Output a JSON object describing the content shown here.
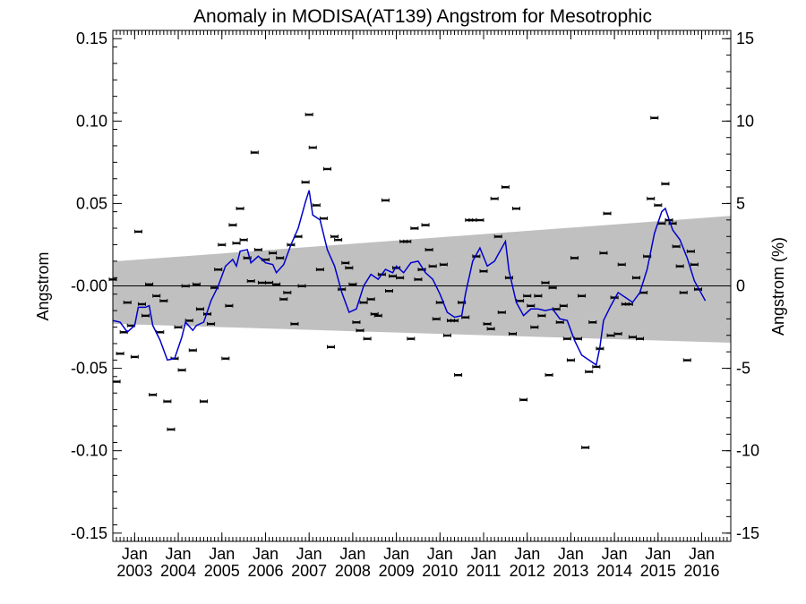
{
  "chart_data": {
    "type": "scatter",
    "title": "Anomaly in MODISA(AT139) Angstrom for Mesotrophic",
    "ylabel_left": "Angstrom",
    "ylabel_right": "Angstrom (%)",
    "ylim_left": [
      -0.155,
      0.155
    ],
    "ylim_right": [
      -15.5,
      15.5
    ],
    "y_ticks_left": [
      "0.15",
      "0.10",
      "0.05",
      "-0.00",
      "-0.05",
      "-0.10",
      "-0.15"
    ],
    "y_tick_values_left": [
      0.15,
      0.1,
      0.05,
      0.0,
      -0.05,
      -0.1,
      -0.15
    ],
    "y_ticks_right": [
      "15",
      "10",
      "5",
      "0",
      "-5",
      "-10",
      "-15"
    ],
    "y_tick_values_right": [
      15,
      10,
      5,
      0,
      -5,
      -10,
      -15
    ],
    "x_range": [
      "2002-07-01",
      "2016-09-01"
    ],
    "x_ticks": [
      {
        "date": "2003-01",
        "line1": "Jan",
        "line2": "2003"
      },
      {
        "date": "2004-01",
        "line1": "Jan",
        "line2": "2004"
      },
      {
        "date": "2005-01",
        "line1": "Jan",
        "line2": "2005"
      },
      {
        "date": "2006-01",
        "line1": "Jan",
        "line2": "2006"
      },
      {
        "date": "2007-01",
        "line1": "Jan",
        "line2": "2007"
      },
      {
        "date": "2008-01",
        "line1": "Jan",
        "line2": "2008"
      },
      {
        "date": "2009-01",
        "line1": "Jan",
        "line2": "2009"
      },
      {
        "date": "2010-01",
        "line1": "Jan",
        "line2": "2010"
      },
      {
        "date": "2011-01",
        "line1": "Jan",
        "line2": "2011"
      },
      {
        "date": "2012-01",
        "line1": "Jan",
        "line2": "2012"
      },
      {
        "date": "2013-01",
        "line1": "Jan",
        "line2": "2013"
      },
      {
        "date": "2014-01",
        "line1": "Jan",
        "line2": "2014"
      },
      {
        "date": "2015-01",
        "line1": "Jan",
        "line2": "2015"
      },
      {
        "date": "2016-01",
        "line1": "Jan",
        "line2": "2016"
      }
    ],
    "zero_line": 0.0,
    "band": {
      "start": {
        "date": "2002-07",
        "upper": 0.0148,
        "lower": -0.023
      },
      "end": {
        "date": "2016-09",
        "upper": 0.0425,
        "lower": -0.0345
      }
    },
    "monthly_points": [
      {
        "date": "2002-07",
        "value": 0.004
      },
      {
        "date": "2002-08",
        "value": -0.058
      },
      {
        "date": "2002-09",
        "value": -0.041
      },
      {
        "date": "2002-10",
        "value": -0.028
      },
      {
        "date": "2002-11",
        "value": -0.01
      },
      {
        "date": "2002-12",
        "value": -0.024
      },
      {
        "date": "2003-01",
        "value": -0.043
      },
      {
        "date": "2003-02",
        "value": 0.033
      },
      {
        "date": "2003-03",
        "value": -0.011
      },
      {
        "date": "2003-04",
        "value": -0.018
      },
      {
        "date": "2003-05",
        "value": 0.001
      },
      {
        "date": "2003-06",
        "value": -0.066
      },
      {
        "date": "2003-07",
        "value": -0.006
      },
      {
        "date": "2003-08",
        "value": -0.028
      },
      {
        "date": "2003-09",
        "value": -0.009
      },
      {
        "date": "2003-10",
        "value": -0.07
      },
      {
        "date": "2003-11",
        "value": -0.087
      },
      {
        "date": "2003-12",
        "value": -0.044
      },
      {
        "date": "2004-01",
        "value": -0.025
      },
      {
        "date": "2004-02",
        "value": -0.051
      },
      {
        "date": "2004-03",
        "value": 0.0
      },
      {
        "date": "2004-04",
        "value": -0.021
      },
      {
        "date": "2004-05",
        "value": -0.039
      },
      {
        "date": "2004-06",
        "value": 0.001
      },
      {
        "date": "2004-07",
        "value": -0.014
      },
      {
        "date": "2004-08",
        "value": -0.07
      },
      {
        "date": "2004-09",
        "value": -0.017
      },
      {
        "date": "2004-10",
        "value": -0.023
      },
      {
        "date": "2004-11",
        "value": -0.001
      },
      {
        "date": "2004-12",
        "value": 0.01
      },
      {
        "date": "2005-01",
        "value": 0.025
      },
      {
        "date": "2005-02",
        "value": -0.044
      },
      {
        "date": "2005-03",
        "value": -0.012
      },
      {
        "date": "2005-04",
        "value": 0.037
      },
      {
        "date": "2005-05",
        "value": 0.026
      },
      {
        "date": "2005-06",
        "value": 0.047
      },
      {
        "date": "2005-07",
        "value": 0.028
      },
      {
        "date": "2005-08",
        "value": 0.017
      },
      {
        "date": "2005-09",
        "value": 0.003
      },
      {
        "date": "2005-10",
        "value": 0.081
      },
      {
        "date": "2005-11",
        "value": 0.022
      },
      {
        "date": "2005-12",
        "value": 0.002
      },
      {
        "date": "2006-01",
        "value": 0.016
      },
      {
        "date": "2006-02",
        "value": 0.002
      },
      {
        "date": "2006-03",
        "value": 0.02
      },
      {
        "date": "2006-04",
        "value": 0.001
      },
      {
        "date": "2006-05",
        "value": 0.017
      },
      {
        "date": "2006-06",
        "value": -0.008
      },
      {
        "date": "2006-07",
        "value": -0.004
      },
      {
        "date": "2006-08",
        "value": 0.025
      },
      {
        "date": "2006-09",
        "value": -0.023
      },
      {
        "date": "2006-10",
        "value": 0.03
      },
      {
        "date": "2006-11",
        "value": 0.0
      },
      {
        "date": "2006-12",
        "value": 0.063
      },
      {
        "date": "2007-01",
        "value": 0.104
      },
      {
        "date": "2007-02",
        "value": 0.084
      },
      {
        "date": "2007-03",
        "value": 0.049
      },
      {
        "date": "2007-04",
        "value": 0.01
      },
      {
        "date": "2007-05",
        "value": 0.041
      },
      {
        "date": "2007-06",
        "value": 0.071
      },
      {
        "date": "2007-07",
        "value": -0.037
      },
      {
        "date": "2007-08",
        "value": 0.03
      },
      {
        "date": "2007-09",
        "value": 0.028
      },
      {
        "date": "2007-10",
        "value": -0.002
      },
      {
        "date": "2007-11",
        "value": 0.014
      },
      {
        "date": "2007-12",
        "value": 0.011
      },
      {
        "date": "2008-01",
        "value": 0.001
      },
      {
        "date": "2008-02",
        "value": -0.022
      },
      {
        "date": "2008-03",
        "value": -0.027
      },
      {
        "date": "2008-04",
        "value": -0.01
      },
      {
        "date": "2008-05",
        "value": -0.032
      },
      {
        "date": "2008-06",
        "value": -0.008
      },
      {
        "date": "2008-07",
        "value": -0.017
      },
      {
        "date": "2008-08",
        "value": -0.018
      },
      {
        "date": "2008-09",
        "value": 0.007
      },
      {
        "date": "2008-10",
        "value": 0.052
      },
      {
        "date": "2008-11",
        "value": -0.003
      },
      {
        "date": "2008-12",
        "value": 0.006
      },
      {
        "date": "2009-01",
        "value": 0.011
      },
      {
        "date": "2009-02",
        "value": 0.005
      },
      {
        "date": "2009-03",
        "value": 0.027
      },
      {
        "date": "2009-04",
        "value": 0.027
      },
      {
        "date": "2009-05",
        "value": -0.032
      },
      {
        "date": "2009-06",
        "value": 0.035
      },
      {
        "date": "2009-07",
        "value": 0.004
      },
      {
        "date": "2009-08",
        "value": 0.01
      },
      {
        "date": "2009-09",
        "value": 0.037
      },
      {
        "date": "2009-10",
        "value": 0.022
      },
      {
        "date": "2009-11",
        "value": 0.012
      },
      {
        "date": "2009-12",
        "value": -0.02
      },
      {
        "date": "2010-01",
        "value": -0.01
      },
      {
        "date": "2010-02",
        "value": 0.013
      },
      {
        "date": "2010-03",
        "value": -0.03
      },
      {
        "date": "2010-04",
        "value": -0.021
      },
      {
        "date": "2010-05",
        "value": -0.021
      },
      {
        "date": "2010-06",
        "value": -0.054
      },
      {
        "date": "2010-07",
        "value": -0.01
      },
      {
        "date": "2010-08",
        "value": -0.019
      },
      {
        "date": "2010-09",
        "value": 0.04
      },
      {
        "date": "2010-10",
        "value": 0.04
      },
      {
        "date": "2010-11",
        "value": 0.018
      },
      {
        "date": "2010-12",
        "value": 0.04
      },
      {
        "date": "2011-01",
        "value": 0.009
      },
      {
        "date": "2011-02",
        "value": -0.023
      },
      {
        "date": "2011-03",
        "value": -0.026
      },
      {
        "date": "2011-04",
        "value": 0.053
      },
      {
        "date": "2011-05",
        "value": 0.03
      },
      {
        "date": "2011-06",
        "value": -0.016
      },
      {
        "date": "2011-07",
        "value": 0.06
      },
      {
        "date": "2011-08",
        "value": 0.005
      },
      {
        "date": "2011-09",
        "value": -0.029
      },
      {
        "date": "2011-10",
        "value": 0.047
      },
      {
        "date": "2011-11",
        "value": -0.009
      },
      {
        "date": "2011-12",
        "value": -0.069
      },
      {
        "date": "2012-01",
        "value": -0.006
      },
      {
        "date": "2012-02",
        "value": -0.012
      },
      {
        "date": "2012-03",
        "value": -0.025
      },
      {
        "date": "2012-04",
        "value": -0.006
      },
      {
        "date": "2012-05",
        "value": -0.018
      },
      {
        "date": "2012-06",
        "value": 0.002
      },
      {
        "date": "2012-07",
        "value": -0.054
      },
      {
        "date": "2012-08",
        "value": -0.001
      },
      {
        "date": "2012-09",
        "value": -0.014
      },
      {
        "date": "2012-10",
        "value": -0.022
      },
      {
        "date": "2012-11",
        "value": -0.012
      },
      {
        "date": "2012-12",
        "value": -0.032
      },
      {
        "date": "2013-01",
        "value": -0.045
      },
      {
        "date": "2013-02",
        "value": 0.017
      },
      {
        "date": "2013-03",
        "value": -0.032
      },
      {
        "date": "2013-04",
        "value": -0.006
      },
      {
        "date": "2013-05",
        "value": -0.098
      },
      {
        "date": "2013-06",
        "value": -0.052
      },
      {
        "date": "2013-07",
        "value": -0.022
      },
      {
        "date": "2013-08",
        "value": -0.049
      },
      {
        "date": "2013-09",
        "value": -0.038
      },
      {
        "date": "2013-10",
        "value": 0.02
      },
      {
        "date": "2013-11",
        "value": 0.044
      },
      {
        "date": "2013-12",
        "value": -0.03
      },
      {
        "date": "2014-01",
        "value": -0.007
      },
      {
        "date": "2014-02",
        "value": -0.029
      },
      {
        "date": "2014-03",
        "value": 0.013
      },
      {
        "date": "2014-04",
        "value": -0.011
      },
      {
        "date": "2014-05",
        "value": -0.011
      },
      {
        "date": "2014-06",
        "value": -0.031
      },
      {
        "date": "2014-07",
        "value": 0.005
      },
      {
        "date": "2014-08",
        "value": -0.032
      },
      {
        "date": "2014-09",
        "value": -0.004
      },
      {
        "date": "2014-10",
        "value": 0.018
      },
      {
        "date": "2014-11",
        "value": 0.053
      },
      {
        "date": "2014-12",
        "value": 0.102
      },
      {
        "date": "2015-01",
        "value": 0.049
      },
      {
        "date": "2015-02",
        "value": 0.038
      },
      {
        "date": "2015-03",
        "value": 0.062
      },
      {
        "date": "2015-04",
        "value": 0.04
      },
      {
        "date": "2015-05",
        "value": 0.038
      },
      {
        "date": "2015-06",
        "value": 0.024
      },
      {
        "date": "2015-07",
        "value": 0.012
      },
      {
        "date": "2015-08",
        "value": -0.004
      },
      {
        "date": "2015-09",
        "value": -0.045
      },
      {
        "date": "2015-10",
        "value": 0.021
      },
      {
        "date": "2015-11",
        "value": 0.013
      },
      {
        "date": "2015-12",
        "value": -0.002
      }
    ],
    "running_mean": [
      {
        "date": "2002-07",
        "value": -0.021
      },
      {
        "date": "2002-09",
        "value": -0.022
      },
      {
        "date": "2002-11",
        "value": -0.028
      },
      {
        "date": "2003-01",
        "value": -0.024
      },
      {
        "date": "2003-02",
        "value": -0.013
      },
      {
        "date": "2003-04",
        "value": -0.013
      },
      {
        "date": "2003-05",
        "value": -0.012
      },
      {
        "date": "2003-06",
        "value": -0.024
      },
      {
        "date": "2003-08",
        "value": -0.033
      },
      {
        "date": "2003-10",
        "value": -0.045
      },
      {
        "date": "2003-12",
        "value": -0.044
      },
      {
        "date": "2004-02",
        "value": -0.031
      },
      {
        "date": "2004-03",
        "value": -0.022
      },
      {
        "date": "2004-05",
        "value": -0.027
      },
      {
        "date": "2004-06",
        "value": -0.024
      },
      {
        "date": "2004-08",
        "value": -0.022
      },
      {
        "date": "2004-10",
        "value": -0.009
      },
      {
        "date": "2004-12",
        "value": 0.0
      },
      {
        "date": "2005-02",
        "value": 0.012
      },
      {
        "date": "2005-04",
        "value": 0.016
      },
      {
        "date": "2005-05",
        "value": 0.012
      },
      {
        "date": "2005-06",
        "value": 0.021
      },
      {
        "date": "2005-08",
        "value": 0.022
      },
      {
        "date": "2005-09",
        "value": 0.014
      },
      {
        "date": "2005-11",
        "value": 0.018
      },
      {
        "date": "2006-01",
        "value": 0.014
      },
      {
        "date": "2006-03",
        "value": 0.013
      },
      {
        "date": "2006-04",
        "value": 0.008
      },
      {
        "date": "2006-06",
        "value": 0.013
      },
      {
        "date": "2006-08",
        "value": 0.025
      },
      {
        "date": "2006-10",
        "value": 0.035
      },
      {
        "date": "2006-12",
        "value": 0.051
      },
      {
        "date": "2007-01",
        "value": 0.058
      },
      {
        "date": "2007-02",
        "value": 0.043
      },
      {
        "date": "2007-04",
        "value": 0.04
      },
      {
        "date": "2007-06",
        "value": 0.022
      },
      {
        "date": "2007-08",
        "value": 0.012
      },
      {
        "date": "2007-10",
        "value": -0.004
      },
      {
        "date": "2007-12",
        "value": -0.016
      },
      {
        "date": "2008-02",
        "value": -0.014
      },
      {
        "date": "2008-04",
        "value": 0.0
      },
      {
        "date": "2008-06",
        "value": 0.007
      },
      {
        "date": "2008-08",
        "value": 0.004
      },
      {
        "date": "2008-10",
        "value": 0.01
      },
      {
        "date": "2008-12",
        "value": 0.008
      },
      {
        "date": "2009-01",
        "value": 0.012
      },
      {
        "date": "2009-03",
        "value": 0.008
      },
      {
        "date": "2009-05",
        "value": 0.014
      },
      {
        "date": "2009-07",
        "value": 0.015
      },
      {
        "date": "2009-09",
        "value": 0.008
      },
      {
        "date": "2009-11",
        "value": 0.004
      },
      {
        "date": "2010-01",
        "value": -0.005
      },
      {
        "date": "2010-03",
        "value": -0.016
      },
      {
        "date": "2010-05",
        "value": -0.019
      },
      {
        "date": "2010-07",
        "value": -0.018
      },
      {
        "date": "2010-08",
        "value": -0.005
      },
      {
        "date": "2010-10",
        "value": 0.015
      },
      {
        "date": "2010-12",
        "value": 0.023
      },
      {
        "date": "2011-02",
        "value": 0.012
      },
      {
        "date": "2011-04",
        "value": 0.015
      },
      {
        "date": "2011-05",
        "value": 0.019
      },
      {
        "date": "2011-07",
        "value": 0.027
      },
      {
        "date": "2011-08",
        "value": 0.009
      },
      {
        "date": "2011-10",
        "value": -0.01
      },
      {
        "date": "2011-12",
        "value": -0.018
      },
      {
        "date": "2012-02",
        "value": -0.014
      },
      {
        "date": "2012-04",
        "value": -0.014
      },
      {
        "date": "2012-06",
        "value": -0.015
      },
      {
        "date": "2012-08",
        "value": -0.014
      },
      {
        "date": "2012-10",
        "value": -0.02
      },
      {
        "date": "2012-12",
        "value": -0.021
      },
      {
        "date": "2013-02",
        "value": -0.033
      },
      {
        "date": "2013-04",
        "value": -0.042
      },
      {
        "date": "2013-06",
        "value": -0.045
      },
      {
        "date": "2013-08",
        "value": -0.048
      },
      {
        "date": "2013-09",
        "value": -0.037
      },
      {
        "date": "2013-10",
        "value": -0.021
      },
      {
        "date": "2013-12",
        "value": -0.012
      },
      {
        "date": "2014-02",
        "value": -0.004
      },
      {
        "date": "2014-04",
        "value": -0.007
      },
      {
        "date": "2014-06",
        "value": -0.01
      },
      {
        "date": "2014-08",
        "value": -0.004
      },
      {
        "date": "2014-10",
        "value": 0.01
      },
      {
        "date": "2014-12",
        "value": 0.032
      },
      {
        "date": "2015-02",
        "value": 0.045
      },
      {
        "date": "2015-03",
        "value": 0.047
      },
      {
        "date": "2015-05",
        "value": 0.034
      },
      {
        "date": "2015-07",
        "value": 0.028
      },
      {
        "date": "2015-09",
        "value": 0.017
      },
      {
        "date": "2015-11",
        "value": 0.003
      },
      {
        "date": "2016-01",
        "value": -0.005
      },
      {
        "date": "2016-02",
        "value": -0.009
      }
    ],
    "colors": {
      "running_mean": "#0000cc",
      "band": "#c0c0c0",
      "points": "#000000"
    }
  }
}
